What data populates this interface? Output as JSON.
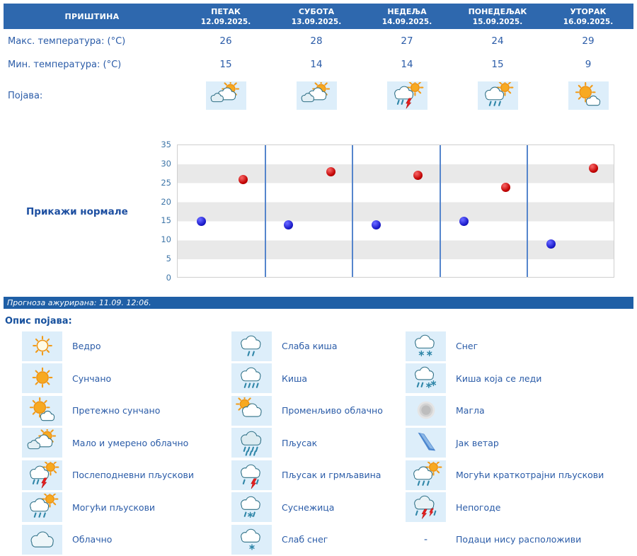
{
  "table": {
    "location": "ПРИШТИНА",
    "days": [
      {
        "name": "ПЕТАК",
        "date": "12.09.2025."
      },
      {
        "name": "СУБОТА",
        "date": "13.09.2025."
      },
      {
        "name": "НЕДЕЉА",
        "date": "14.09.2025."
      },
      {
        "name": "ПОНЕДЕЉАК",
        "date": "15.09.2025."
      },
      {
        "name": "УТОРАК",
        "date": "16.09.2025."
      }
    ],
    "max_label": "Макс. температура: (°C)",
    "min_label": "Мин. температура: (°C)",
    "phenomenon_label": "Појава:",
    "phenomenon_icons": [
      "partly-cloudy",
      "partly-cloudy",
      "afternoon-showers",
      "possible-brief-showers",
      "mostly-sunny"
    ]
  },
  "chart_data": {
    "type": "scatter",
    "categories": [
      "ПЕТАК 12.09.2025.",
      "СУБОТА 13.09.2025.",
      "НЕДЕЉА 14.09.2025.",
      "ПОНЕДЕЉАК 15.09.2025.",
      "УТОРАК 16.09.2025."
    ],
    "series": [
      {
        "name": "Макс. температура (°C)",
        "color": "#c00000",
        "values": [
          26,
          28,
          27,
          24,
          29
        ]
      },
      {
        "name": "Мин. температура (°C)",
        "color": "#1a1ac8",
        "values": [
          15,
          14,
          14,
          15,
          9
        ]
      }
    ],
    "ylim": [
      0,
      35
    ],
    "yticks": [
      0,
      5,
      10,
      15,
      20,
      25,
      30,
      35
    ],
    "grid": "horizontal-bands",
    "legend_position": "none"
  },
  "show_normals_label": "Прикажи нормале",
  "updated_text": "Прогноза ажурирана:  11.09. 12:06.",
  "legend": {
    "title": "Опис појава:",
    "no_data_symbol": "-",
    "columns": [
      [
        {
          "icon": "clear",
          "label": "Ведро"
        },
        {
          "icon": "sunny",
          "label": "Сунчано"
        },
        {
          "icon": "mostly-sunny",
          "label": "Претежно сунчано"
        },
        {
          "icon": "partly-cloudy",
          "label": "Мало и умерено облачно"
        },
        {
          "icon": "afternoon-showers",
          "label": "Послеподневни пљускови"
        },
        {
          "icon": "possible-showers",
          "label": "Могући пљускови"
        },
        {
          "icon": "cloudy",
          "label": "Облачно"
        }
      ],
      [
        {
          "icon": "light-rain",
          "label": "Слаба киша"
        },
        {
          "icon": "rain",
          "label": "Киша"
        },
        {
          "icon": "variable-cloudy",
          "label": "Променљиво облачно"
        },
        {
          "icon": "shower",
          "label": "Пљусак"
        },
        {
          "icon": "shower-thunder",
          "label": "Пљусак и грмљавина"
        },
        {
          "icon": "sleet",
          "label": "Суснежица"
        },
        {
          "icon": "light-snow",
          "label": "Слаб снег"
        }
      ],
      [
        {
          "icon": "snow",
          "label": "Снег"
        },
        {
          "icon": "freezing-rain",
          "label": "Киша која се леди"
        },
        {
          "icon": "fog",
          "label": "Магла"
        },
        {
          "icon": "strong-wind",
          "label": "Јак ветар"
        },
        {
          "icon": "possible-brief-showers",
          "label": "Могући краткотрајни пљускови"
        },
        {
          "icon": "storm",
          "label": "Непогоде"
        },
        {
          "icon": "no-data",
          "label": "Подаци нису расположиви"
        }
      ]
    ]
  },
  "colors": {
    "header_bg": "#2e68ae",
    "bar_bg": "#1f5fa6",
    "text_blue": "#2b5ca8",
    "max_dot": "#c00000",
    "min_dot": "#1a1ac8",
    "icon_bg": "#ddeefa"
  }
}
